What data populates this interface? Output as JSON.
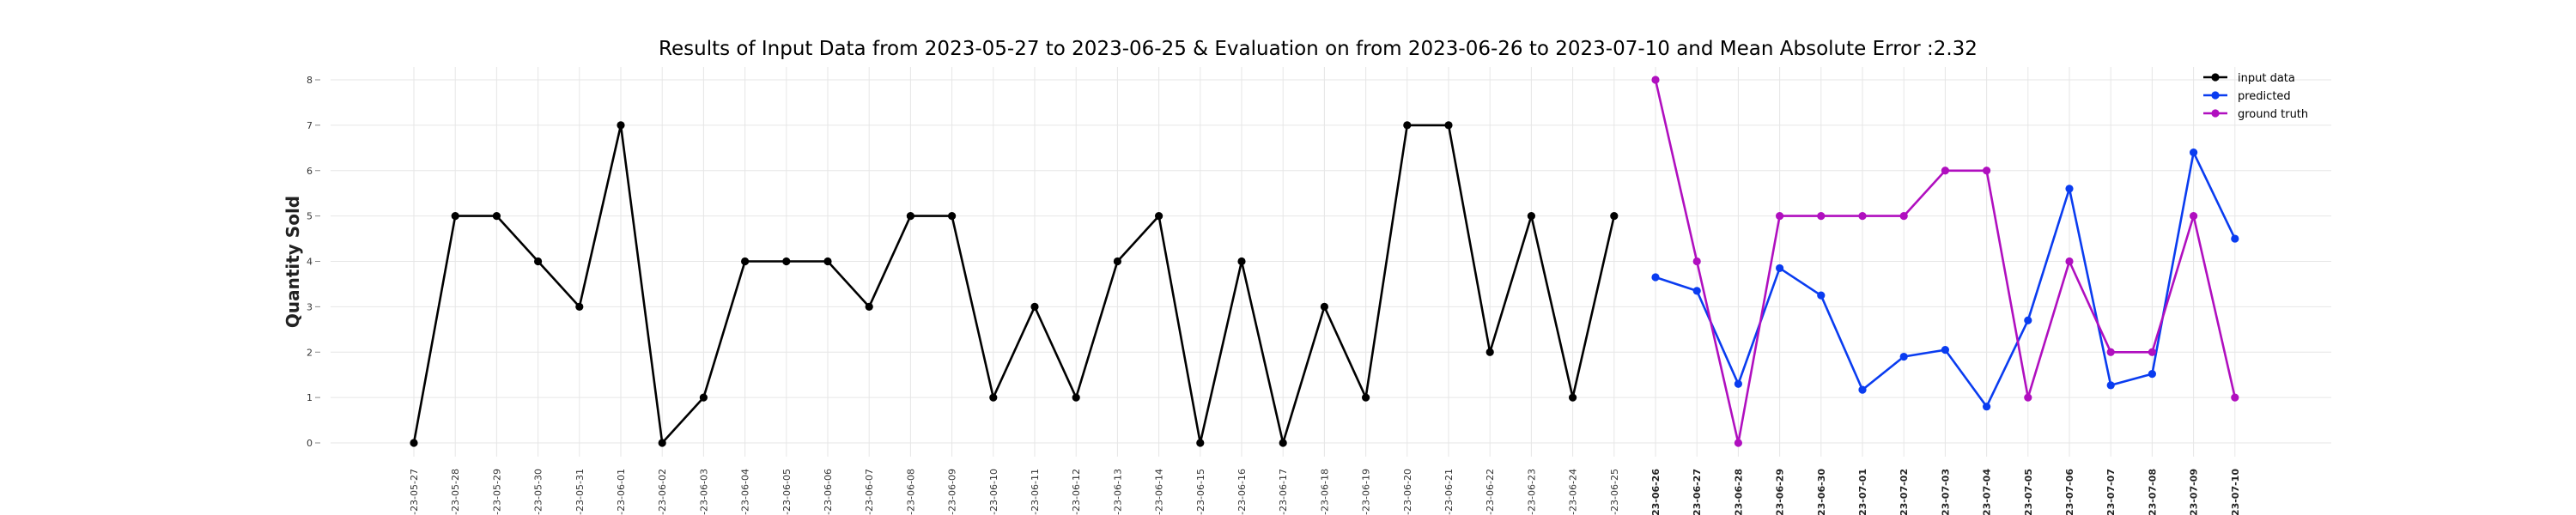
{
  "chart_data": {
    "type": "line",
    "title": "Results of Input Data from 2023-05-27 to 2023-06-25 & Evaluation on from 2023-06-26 to 2023-07-10 and Mean Absolute Error  :2.32",
    "ylabel": "Quantity Sold",
    "xlabel": "",
    "ylim": [
      0,
      8
    ],
    "yticks": [
      0,
      1,
      2,
      3,
      4,
      5,
      6,
      7,
      8
    ],
    "grid": true,
    "legend_position": "top-right",
    "x": [
      "2023-05-27",
      "2023-05-28",
      "2023-05-29",
      "2023-05-30",
      "2023-05-31",
      "2023-06-01",
      "2023-06-02",
      "2023-06-03",
      "2023-06-04",
      "2023-06-05",
      "2023-06-06",
      "2023-06-07",
      "2023-06-08",
      "2023-06-09",
      "2023-06-10",
      "2023-06-11",
      "2023-06-12",
      "2023-06-13",
      "2023-06-14",
      "2023-06-15",
      "2023-06-16",
      "2023-06-17",
      "2023-06-18",
      "2023-06-19",
      "2023-06-20",
      "2023-06-21",
      "2023-06-22",
      "2023-06-23",
      "2023-06-24",
      "2023-06-25",
      "2023-06-26",
      "2023-06-27",
      "2023-06-28",
      "2023-06-29",
      "2023-06-30",
      "2023-07-01",
      "2023-07-02",
      "2023-07-03",
      "2023-07-04",
      "2023-07-05",
      "2023-07-06",
      "2023-07-07",
      "2023-07-08",
      "2023-07-09",
      "2023-07-10"
    ],
    "xtick_labels": [
      "-23-05-27",
      "-23-05-28",
      "-23-05-29",
      "-23-05-30",
      "-23-05-31",
      "-23-06-01",
      "-23-06-02",
      "-23-06-03",
      "-23-06-04",
      "-23-06-05",
      "-23-06-06",
      "-23-06-07",
      "-23-06-08",
      "-23-06-09",
      "-23-06-10",
      "-23-06-11",
      "-23-06-12",
      "-23-06-13",
      "-23-06-14",
      "-23-06-15",
      "-23-06-16",
      "-23-06-17",
      "-23-06-18",
      "-23-06-19",
      "-23-06-20",
      "-23-06-21",
      "-23-06-22",
      "-23-06-23",
      "-23-06-24",
      "-23-06-25",
      "-23-06-26",
      "-23-06-27",
      "-23-06-28",
      "-23-06-29",
      "-23-06-30",
      "-23-07-01",
      "-23-07-02",
      "-23-07-03",
      "-23-07-04",
      "-23-07-05",
      "-23-07-06",
      "-23-07-07",
      "-23-07-08",
      "-23-07-09",
      "-23-07-10"
    ],
    "series": [
      {
        "name": "input data",
        "color": "#000000",
        "x": [
          "2023-05-27",
          "2023-05-28",
          "2023-05-29",
          "2023-05-30",
          "2023-05-31",
          "2023-06-01",
          "2023-06-02",
          "2023-06-03",
          "2023-06-04",
          "2023-06-05",
          "2023-06-06",
          "2023-06-07",
          "2023-06-08",
          "2023-06-09",
          "2023-06-10",
          "2023-06-11",
          "2023-06-12",
          "2023-06-13",
          "2023-06-14",
          "2023-06-15",
          "2023-06-16",
          "2023-06-17",
          "2023-06-18",
          "2023-06-19",
          "2023-06-20",
          "2023-06-21",
          "2023-06-22",
          "2023-06-23",
          "2023-06-24",
          "2023-06-25"
        ],
        "values": [
          0,
          5,
          5,
          4,
          3,
          7,
          0,
          1,
          4,
          4,
          4,
          3,
          5,
          5,
          1,
          3,
          1,
          4,
          5,
          0,
          4,
          0,
          3,
          1,
          7,
          7,
          2,
          5,
          1,
          5
        ]
      },
      {
        "name": "predicted",
        "color": "#0a3cf0",
        "x": [
          "2023-06-26",
          "2023-06-27",
          "2023-06-28",
          "2023-06-29",
          "2023-06-30",
          "2023-07-01",
          "2023-07-02",
          "2023-07-03",
          "2023-07-04",
          "2023-07-05",
          "2023-07-06",
          "2023-07-07",
          "2023-07-08",
          "2023-07-09",
          "2023-07-10"
        ],
        "values": [
          3.65,
          3.35,
          1.3,
          3.85,
          3.25,
          1.17,
          1.9,
          2.05,
          0.8,
          2.7,
          5.6,
          1.27,
          1.52,
          6.4,
          4.5
        ]
      },
      {
        "name": "ground truth",
        "color": "#b00fbf",
        "x": [
          "2023-06-26",
          "2023-06-27",
          "2023-06-28",
          "2023-06-29",
          "2023-06-30",
          "2023-07-01",
          "2023-07-02",
          "2023-07-03",
          "2023-07-04",
          "2023-07-05",
          "2023-07-06",
          "2023-07-07",
          "2023-07-08",
          "2023-07-09",
          "2023-07-10"
        ],
        "values": [
          8,
          4,
          0,
          5,
          5,
          5,
          5,
          6,
          6,
          1,
          4,
          2,
          2,
          5,
          1
        ]
      }
    ]
  }
}
